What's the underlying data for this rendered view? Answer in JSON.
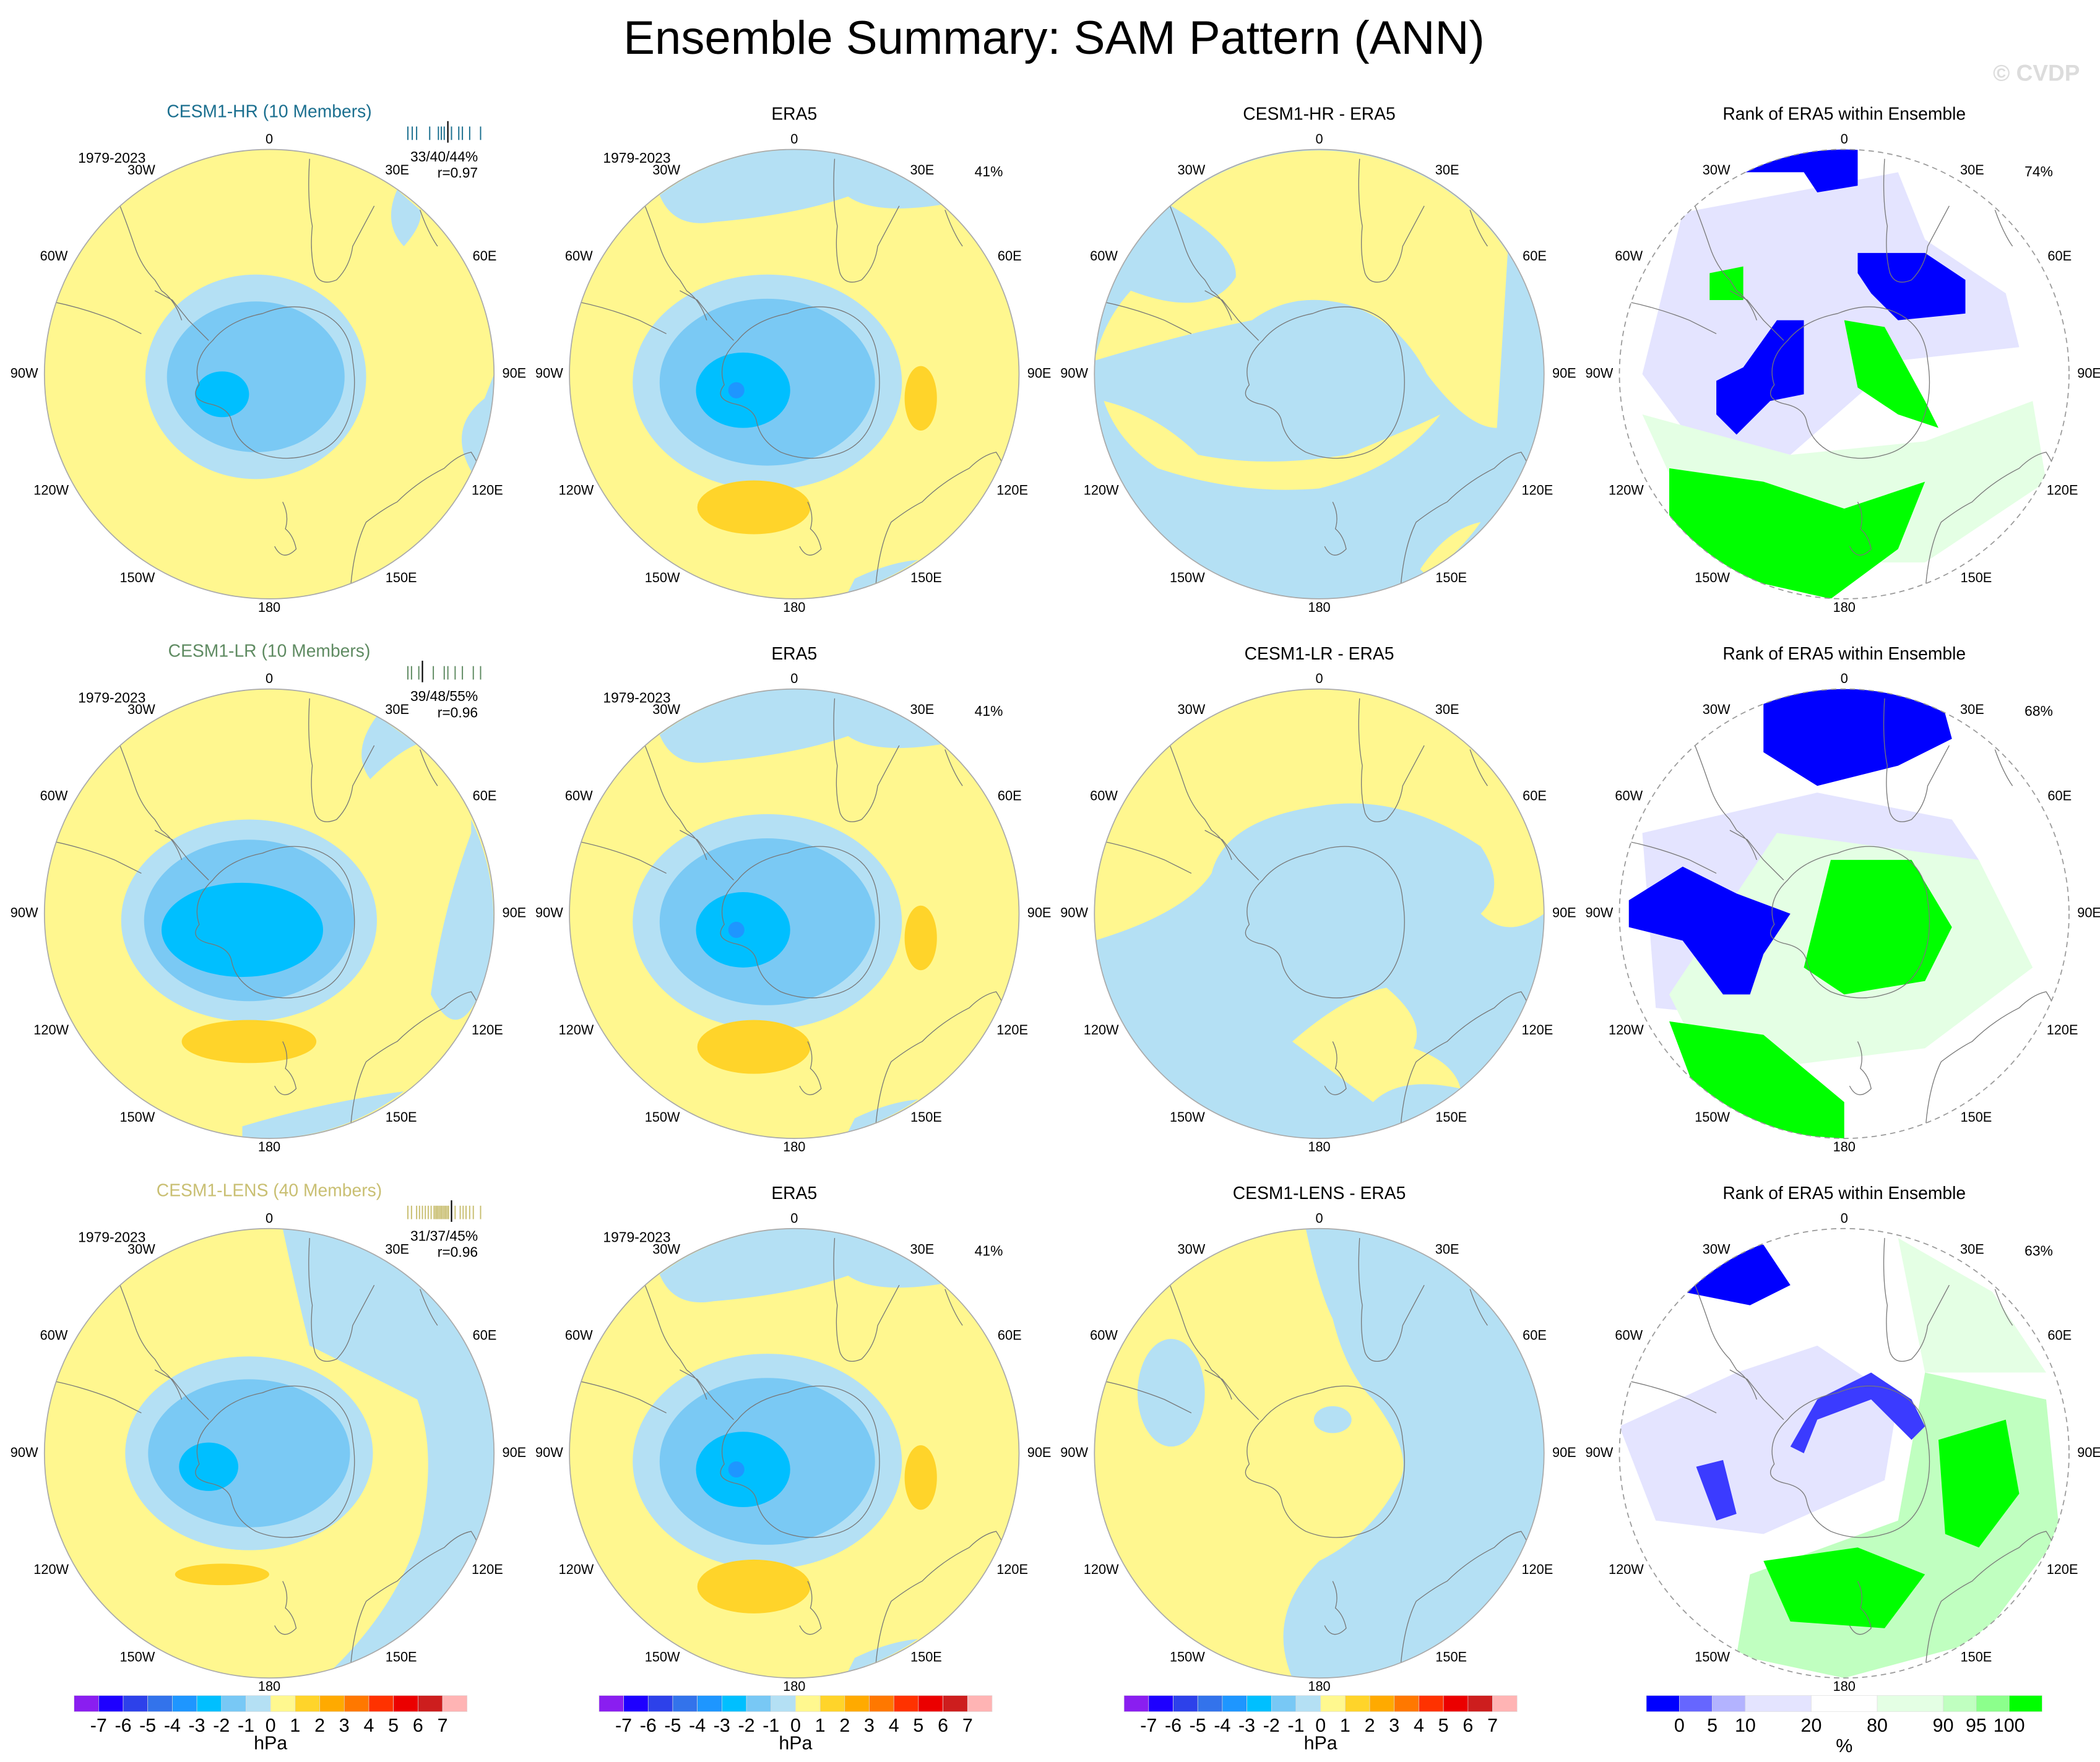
{
  "title": "Ensemble Summary: SAM Pattern (ANN)",
  "watermark": "© CVDP",
  "period": "1979-2023",
  "lon_labels": {
    "n0": "0",
    "e30": "30E",
    "e60": "60E",
    "e90": "90E",
    "e120": "120E",
    "e150": "150E",
    "s180": "180",
    "w150": "150W",
    "w120": "120W",
    "w90": "90W",
    "w60": "60W",
    "w30": "30W"
  },
  "colors": {
    "hr": "#1b6f8f",
    "lr": "#5f8b62",
    "lens": "#c9bf72",
    "pos1": "#fff78f",
    "pos2": "#ffd42a",
    "neg1": "#b4e0f4",
    "neg2": "#7ac9f4",
    "neg3": "#00bfff",
    "neg4": "#1e96ff",
    "rank_low": "#0000ff",
    "rank_high": "#00ff00",
    "rank_mid": "#ffffff"
  },
  "rows": [
    {
      "model": "CESM1-HR (10 Members)",
      "stats": "33/40/44%",
      "r": "r=0.97",
      "obs_title": "ERA5",
      "obs_pct": "41%",
      "diff_title": "CESM1-HR - ERA5",
      "rank_title": "Rank of ERA5 within Ensemble",
      "rank_pct": "74%"
    },
    {
      "model": "CESM1-LR (10 Members)",
      "stats": "39/48/55%",
      "r": "r=0.96",
      "obs_title": "ERA5",
      "obs_pct": "41%",
      "diff_title": "CESM1-LR - ERA5",
      "rank_title": "Rank of ERA5 within Ensemble",
      "rank_pct": "68%"
    },
    {
      "model": "CESM1-LENS (40 Members)",
      "stats": "31/37/45%",
      "r": "r=0.96",
      "obs_title": "ERA5",
      "obs_pct": "41%",
      "diff_title": "CESM1-LENS - ERA5",
      "rank_title": "Rank of ERA5 within Ensemble",
      "rank_pct": "63%"
    }
  ],
  "colorbar_hpa": {
    "unit": "hPa",
    "labels": [
      "-7",
      "-6",
      "-5",
      "-4",
      "-3",
      "-2",
      "-1",
      "0",
      "1",
      "2",
      "3",
      "4",
      "5",
      "6",
      "7"
    ],
    "colors": [
      "#8a1ef0",
      "#1e00ff",
      "#2d41ea",
      "#3373eb",
      "#1e96ff",
      "#00bfff",
      "#78c8f5",
      "#b4e0f4",
      "#fff88f",
      "#ffd42a",
      "#ffaa00",
      "#ff7800",
      "#ff3200",
      "#eb0000",
      "#cd1e1e",
      "#ffb4b4"
    ]
  },
  "colorbar_rank": {
    "unit": "%",
    "labels": [
      "0",
      "5",
      "10",
      "20",
      "80",
      "90",
      "95",
      "100"
    ],
    "colors": [
      "#0000ff",
      "#6666ff",
      "#b3b3ff",
      "#e4e4ff",
      "#ffffff",
      "#e4ffe4",
      "#c0ffc0",
      "#8cff8c",
      "#00ff00"
    ],
    "widths": [
      1,
      1,
      1,
      2,
      2,
      2,
      1,
      1,
      1
    ]
  }
}
